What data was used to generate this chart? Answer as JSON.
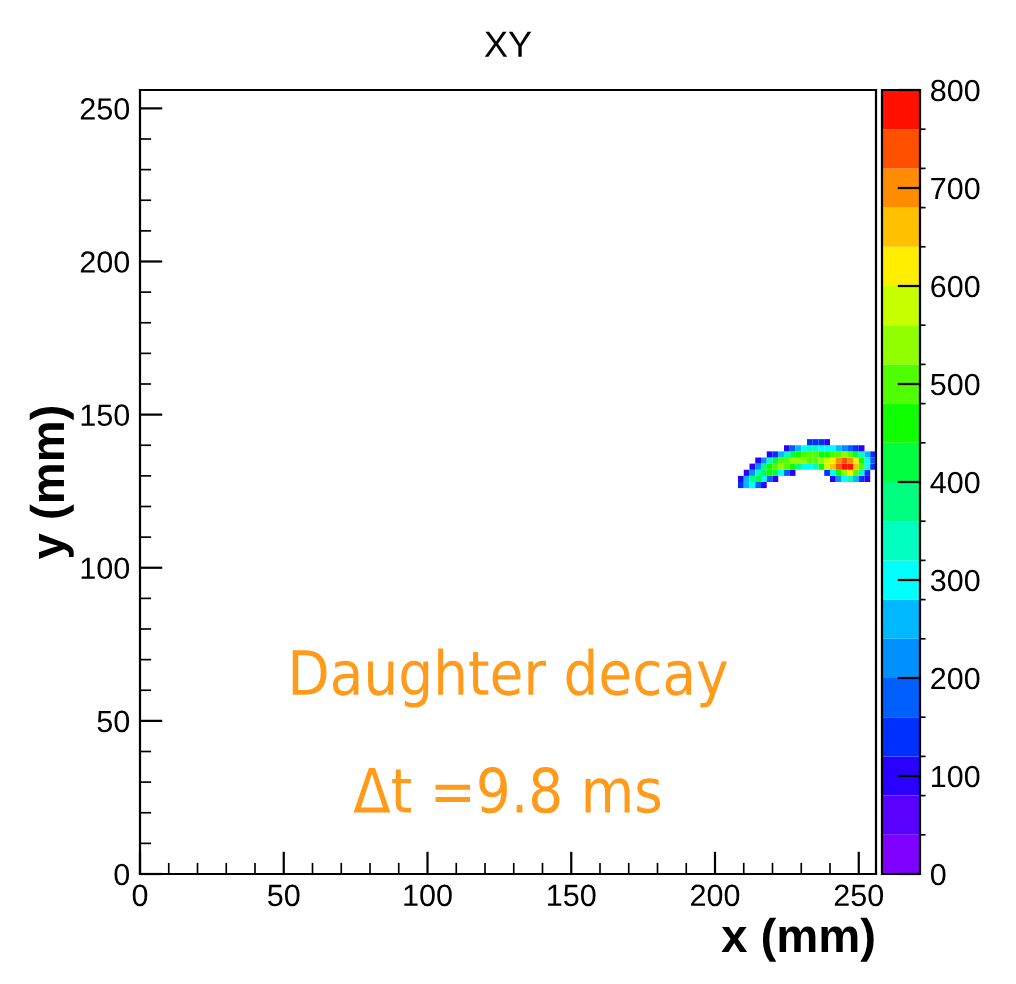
{
  "chart_data": {
    "type": "heatmap",
    "title": "XY",
    "xlabel": "x (mm)",
    "ylabel": "y (mm)",
    "x": [
      209,
      211,
      213,
      215,
      217,
      219,
      221,
      223,
      225,
      227,
      229,
      231,
      233,
      235,
      237,
      239,
      241,
      243,
      245,
      247,
      249,
      251,
      253,
      255
    ],
    "y": [
      141,
      139,
      137,
      135,
      133,
      131,
      129,
      127
    ],
    "cells": [
      [
        null,
        null,
        null,
        null,
        null,
        null,
        null,
        null,
        null,
        null,
        null,
        null,
        120,
        150,
        130,
        90,
        null,
        null,
        null,
        null,
        null,
        null,
        null,
        null
      ],
      [
        null,
        null,
        null,
        null,
        null,
        null,
        null,
        null,
        100,
        180,
        250,
        300,
        320,
        330,
        310,
        300,
        280,
        250,
        220,
        180,
        120,
        80,
        null,
        null
      ],
      [
        null,
        null,
        null,
        null,
        null,
        80,
        150,
        250,
        350,
        420,
        450,
        480,
        500,
        480,
        470,
        460,
        480,
        500,
        520,
        480,
        420,
        350,
        250,
        150
      ],
      [
        null,
        null,
        null,
        100,
        200,
        330,
        430,
        480,
        500,
        520,
        540,
        530,
        500,
        490,
        520,
        560,
        620,
        680,
        720,
        700,
        600,
        450,
        300,
        180
      ],
      [
        null,
        null,
        100,
        220,
        380,
        460,
        500,
        520,
        500,
        450,
        380,
        300,
        280,
        350,
        450,
        560,
        650,
        720,
        780,
        800,
        650,
        480,
        300,
        150
      ],
      [
        null,
        80,
        200,
        350,
        430,
        450,
        400,
        300,
        180,
        80,
        null,
        null,
        null,
        null,
        null,
        120,
        300,
        450,
        550,
        600,
        500,
        350,
        150,
        null
      ],
      [
        100,
        250,
        380,
        400,
        300,
        180,
        80,
        null,
        null,
        null,
        null,
        null,
        null,
        null,
        null,
        null,
        100,
        200,
        300,
        320,
        250,
        150,
        80,
        null
      ],
      [
        120,
        250,
        280,
        180,
        80,
        null,
        null,
        null,
        null,
        null,
        null,
        null,
        null,
        null,
        null,
        null,
        null,
        null,
        null,
        null,
        null,
        null,
        null,
        null
      ]
    ],
    "xlim": [
      0,
      256
    ],
    "ylim": [
      0,
      256
    ],
    "xticks": [
      0,
      50,
      100,
      150,
      200,
      250
    ],
    "yticks": [
      0,
      50,
      100,
      150,
      200,
      250
    ],
    "clim": [
      0,
      800
    ],
    "cticks": [
      0,
      100,
      200,
      300,
      400,
      500,
      600,
      700,
      800
    ],
    "grid": false,
    "annotations": [
      "Daughter decay",
      "Δt =9.8 ms"
    ]
  }
}
